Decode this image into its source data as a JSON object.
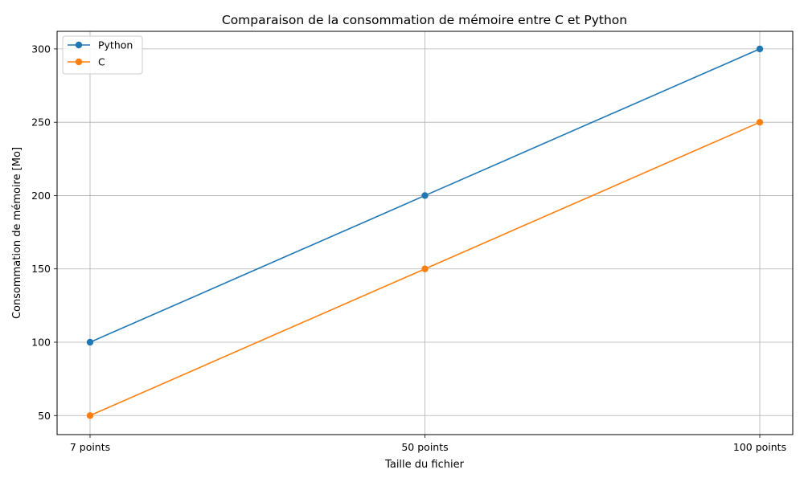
{
  "chart_data": {
    "type": "line",
    "title": "Comparaison de la consommation de mémoire entre C et Python",
    "xlabel": "Taille du fichier",
    "ylabel": "Consommation de mémoire [Mo]",
    "categories": [
      "7 points",
      "50 points",
      "100 points"
    ],
    "yticks": [
      "50",
      "100",
      "150",
      "200",
      "250",
      "300"
    ],
    "ylim": [
      37,
      312
    ],
    "grid": true,
    "legend_position": "top-left",
    "series": [
      {
        "name": "Python",
        "color": "#1f77b4",
        "values": [
          100,
          200,
          300
        ]
      },
      {
        "name": "C",
        "color": "#ff7f0e",
        "values": [
          50,
          150,
          250
        ]
      }
    ]
  }
}
